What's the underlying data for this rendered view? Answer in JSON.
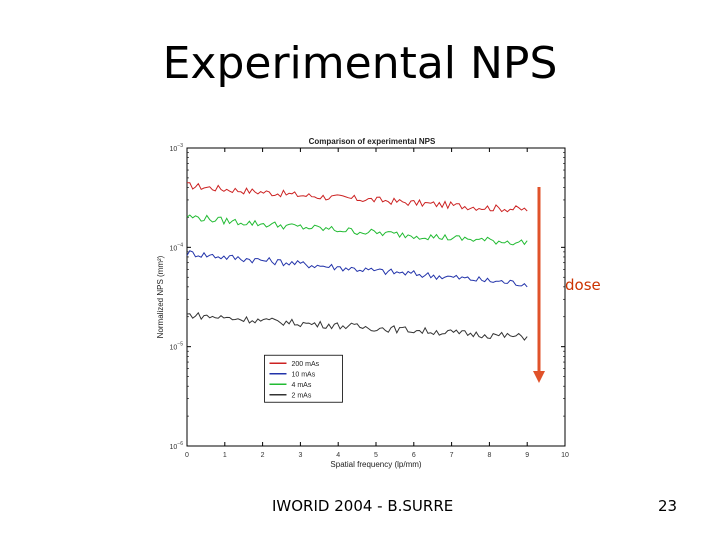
{
  "slide": {
    "title": "Experimental NPS",
    "footer": "IWORID 2004 - B.SURRE",
    "page_number": "23",
    "dose_label": "dose",
    "dose_arrow_color": "#e0522a"
  },
  "chart_data": {
    "type": "line",
    "title": "Comparison of experimental NPS",
    "xlabel": "Spatial frequency (lp/mm)",
    "ylabel": "Normalized NPS (mm²)",
    "xlim": [
      0,
      10
    ],
    "ylim": [
      1e-06,
      0.001
    ],
    "yscale": "log",
    "x_ticks": [
      "0",
      "1",
      "2",
      "3",
      "4",
      "5",
      "6",
      "7",
      "8",
      "9",
      "10"
    ],
    "y_ticks": [
      {
        "value": 0.001,
        "base": "10",
        "exp": "−3"
      },
      {
        "value": 0.0001,
        "base": "10",
        "exp": "−4"
      },
      {
        "value": 1e-05,
        "base": "10",
        "exp": "−5"
      },
      {
        "value": 1e-06,
        "base": "10",
        "exp": "−6"
      }
    ],
    "grid": false,
    "legend_position": "bottom-left",
    "series": [
      {
        "name": "200 mAs",
        "color": "#cc2222",
        "x": [
          0,
          1,
          2,
          3,
          4,
          5,
          6,
          7,
          8,
          9
        ],
        "y": [
          0.00042,
          0.000385,
          0.00036,
          0.000335,
          0.000315,
          0.0003,
          0.00028,
          0.000265,
          0.00025,
          0.00024
        ]
      },
      {
        "name": "10 mAs",
        "color": "#2233aa",
        "x": [
          0,
          1,
          2,
          3,
          4,
          5,
          6,
          7,
          8,
          9
        ],
        "y": [
          8.8e-05,
          8e-05,
          7.4e-05,
          6.8e-05,
          6.3e-05,
          5.8e-05,
          5.4e-05,
          5e-05,
          4.6e-05,
          4.3e-05
        ]
      },
      {
        "name": "4 mAs",
        "color": "#22bb33",
        "x": [
          0,
          1,
          2,
          3,
          4,
          5,
          6,
          7,
          8,
          9
        ],
        "y": [
          0.000205,
          0.000185,
          0.000172,
          0.00016,
          0.00015,
          0.00014,
          0.000132,
          0.000124,
          0.000117,
          0.000111
        ]
      },
      {
        "name": "2 mAs",
        "color": "#333333",
        "x": [
          0,
          1,
          2,
          3,
          4,
          5,
          6,
          7,
          8,
          9
        ],
        "y": [
          2.1e-05,
          1.95e-05,
          1.83e-05,
          1.72e-05,
          1.63e-05,
          1.54e-05,
          1.46e-05,
          1.38e-05,
          1.31e-05,
          1.25e-05
        ]
      }
    ]
  }
}
